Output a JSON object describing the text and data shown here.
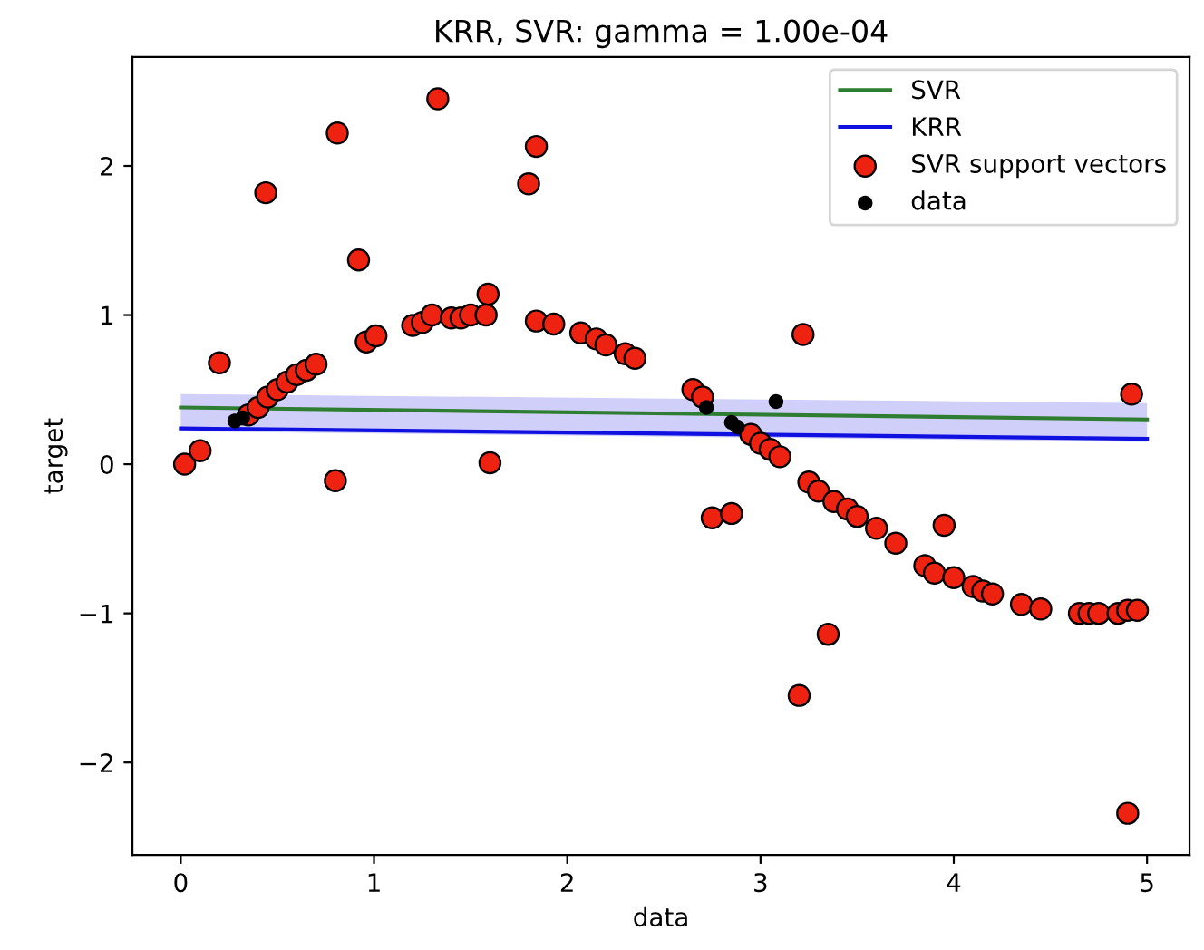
{
  "chart_data": {
    "type": "scatter",
    "title": "KRR, SVR: gamma = 1.00e-04",
    "xlabel": "data",
    "ylabel": "target",
    "xlim": [
      -0.25,
      5.22
    ],
    "ylim": [
      -2.62,
      2.73
    ],
    "xticks": [
      0,
      1,
      2,
      3,
      4,
      5
    ],
    "yticks": [
      {
        "value": -2,
        "label": "−2"
      },
      {
        "value": -1,
        "label": "−1"
      },
      0,
      1,
      2
    ],
    "grid": false,
    "legend": "top right",
    "series": [
      {
        "name": "SVR",
        "type": "line",
        "color": "#2e7d32",
        "x": [
          0,
          5
        ],
        "values": [
          0.38,
          0.3
        ]
      },
      {
        "name": "KRR",
        "type": "line",
        "color": "#1010e0",
        "x": [
          0,
          5
        ],
        "values": [
          0.24,
          0.17
        ],
        "lower": [
          0.22,
          0.15
        ],
        "upper": [
          0.47,
          0.41
        ]
      },
      {
        "name": "SVR support vectors",
        "color": "#ee2211",
        "x": [
          0.02,
          0.1,
          0.2,
          0.44,
          0.81,
          0.8,
          0.92,
          0.96,
          1.01,
          0.35,
          0.4,
          0.45,
          0.5,
          0.55,
          0.6,
          0.65,
          0.7,
          1.2,
          1.25,
          1.3,
          1.33,
          1.4,
          1.45,
          1.5,
          1.58,
          1.59,
          1.6,
          1.8,
          1.84,
          1.84,
          1.93,
          2.07,
          2.15,
          2.2,
          2.3,
          2.35,
          2.65,
          2.7,
          2.75,
          2.85,
          2.95,
          3.0,
          3.05,
          3.1,
          3.2,
          3.22,
          3.25,
          3.3,
          3.35,
          3.38,
          3.45,
          3.5,
          3.6,
          3.7,
          3.85,
          3.9,
          3.95,
          4.0,
          4.1,
          4.15,
          4.2,
          4.35,
          4.45,
          4.65,
          4.7,
          4.75,
          4.85,
          4.9,
          4.9,
          4.95,
          4.92
        ],
        "values": [
          0.0,
          0.09,
          0.68,
          1.82,
          2.22,
          -0.11,
          1.37,
          0.82,
          0.86,
          0.33,
          0.38,
          0.45,
          0.5,
          0.55,
          0.6,
          0.63,
          0.67,
          0.93,
          0.95,
          1.0,
          2.45,
          0.98,
          0.98,
          1.0,
          1.0,
          1.14,
          0.01,
          1.88,
          2.13,
          0.96,
          0.94,
          0.88,
          0.84,
          0.8,
          0.74,
          0.71,
          0.5,
          0.45,
          -0.36,
          -0.33,
          0.2,
          0.14,
          0.1,
          0.05,
          -1.55,
          0.87,
          -0.12,
          -0.18,
          -1.14,
          -0.25,
          -0.3,
          -0.35,
          -0.43,
          -0.53,
          -0.68,
          -0.73,
          -0.41,
          -0.76,
          -0.82,
          -0.85,
          -0.87,
          -0.94,
          -0.97,
          -1.0,
          -1.0,
          -1.0,
          -1.0,
          -0.98,
          -2.34,
          -0.98,
          0.47
        ]
      },
      {
        "name": "data",
        "color": "#000000",
        "x": [
          0.28,
          0.32,
          2.72,
          2.85,
          2.88,
          3.08
        ],
        "values": [
          0.29,
          0.31,
          0.38,
          0.28,
          0.25,
          0.42
        ]
      }
    ]
  }
}
